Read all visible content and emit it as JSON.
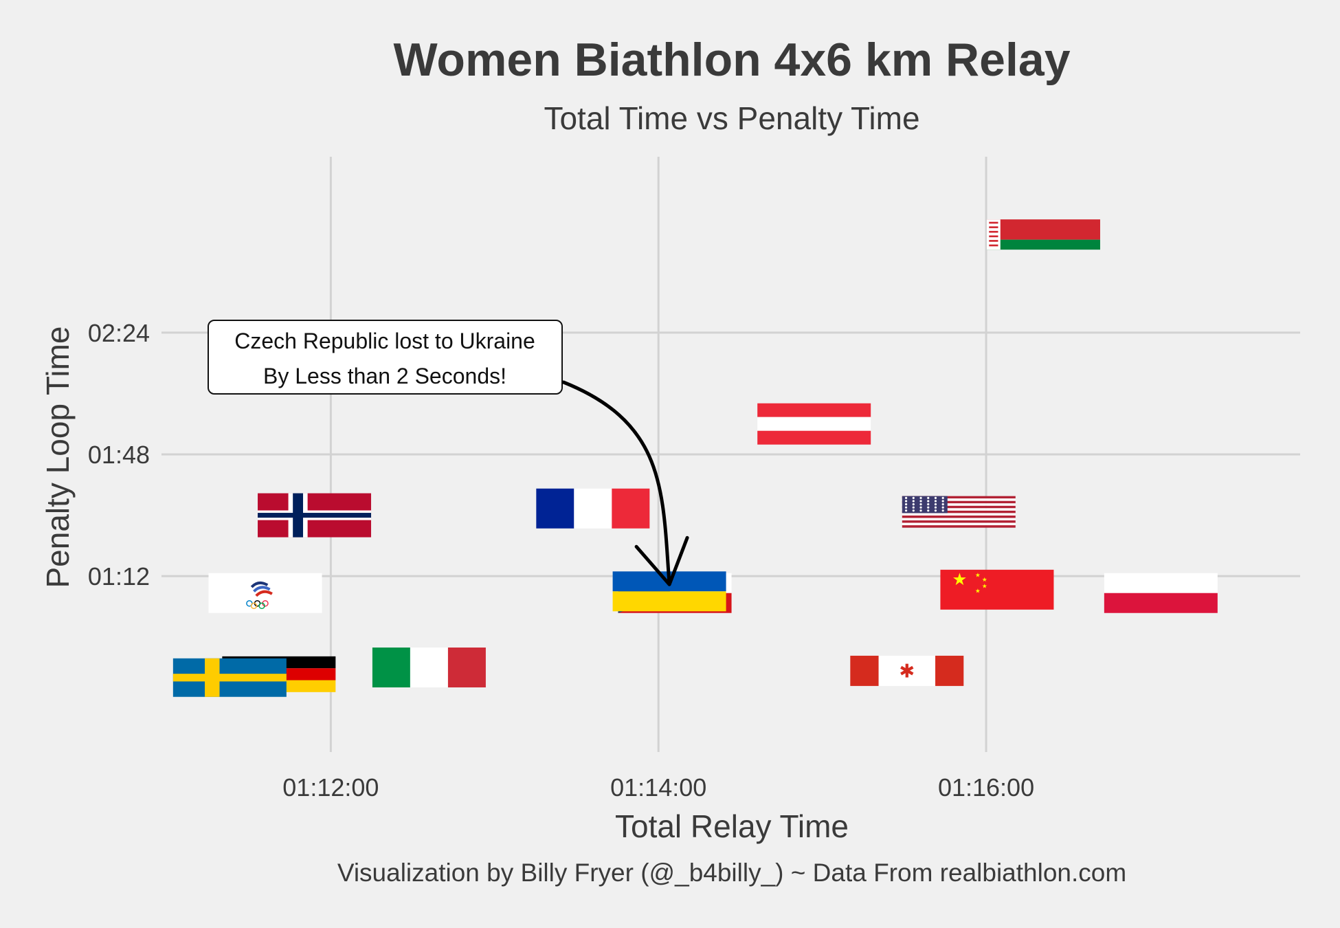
{
  "chart_data": {
    "type": "scatter",
    "title": "Women Biathlon 4x6 km Relay",
    "subtitle": "Total Time vs Penalty Time",
    "xlabel": "Total Relay Time",
    "ylabel": "Penalty Loop Time",
    "caption": "Visualization by Billy Fryer (@_b4billy_) ~ Data From realbiathlon.com",
    "x_unit": "seconds",
    "y_unit": "seconds",
    "xlim": [
      4258,
      4675
    ],
    "ylim": [
      20,
      196
    ],
    "x_ticks": [
      {
        "value": 4320,
        "label": "01:12:00"
      },
      {
        "value": 4440,
        "label": "01:14:00"
      },
      {
        "value": 4560,
        "label": "01:16:00"
      }
    ],
    "y_ticks": [
      {
        "value": 72,
        "label": "01:12"
      },
      {
        "value": 108,
        "label": "01:48"
      },
      {
        "value": 144,
        "label": "02:24"
      }
    ],
    "grid": true,
    "legend": "none",
    "points": [
      {
        "flag": "belarus",
        "x": 4581,
        "y": 173
      },
      {
        "flag": "austria",
        "x": 4497,
        "y": 117
      },
      {
        "flag": "france",
        "x": 4416,
        "y": 92
      },
      {
        "flag": "usa",
        "x": 4550,
        "y": 91
      },
      {
        "flag": "norway",
        "x": 4314,
        "y": 90
      },
      {
        "flag": "czech_republic",
        "x": 4446,
        "y": 67
      },
      {
        "flag": "ukraine",
        "x": 4444,
        "y": 67.5
      },
      {
        "flag": "china",
        "x": 4564,
        "y": 68
      },
      {
        "flag": "poland",
        "x": 4624,
        "y": 67
      },
      {
        "flag": "russian_olympic_committee",
        "x": 4296,
        "y": 67
      },
      {
        "flag": "italy",
        "x": 4356,
        "y": 45
      },
      {
        "flag": "canada",
        "x": 4531,
        "y": 44
      },
      {
        "flag": "germany",
        "x": 4301,
        "y": 43
      },
      {
        "flag": "sweden",
        "x": 4283,
        "y": 42
      }
    ],
    "annotation": {
      "lines": [
        "Czech Republic lost to Ukraine",
        "By Less than 2 Seconds!"
      ],
      "target_flag": "ukraine"
    }
  }
}
